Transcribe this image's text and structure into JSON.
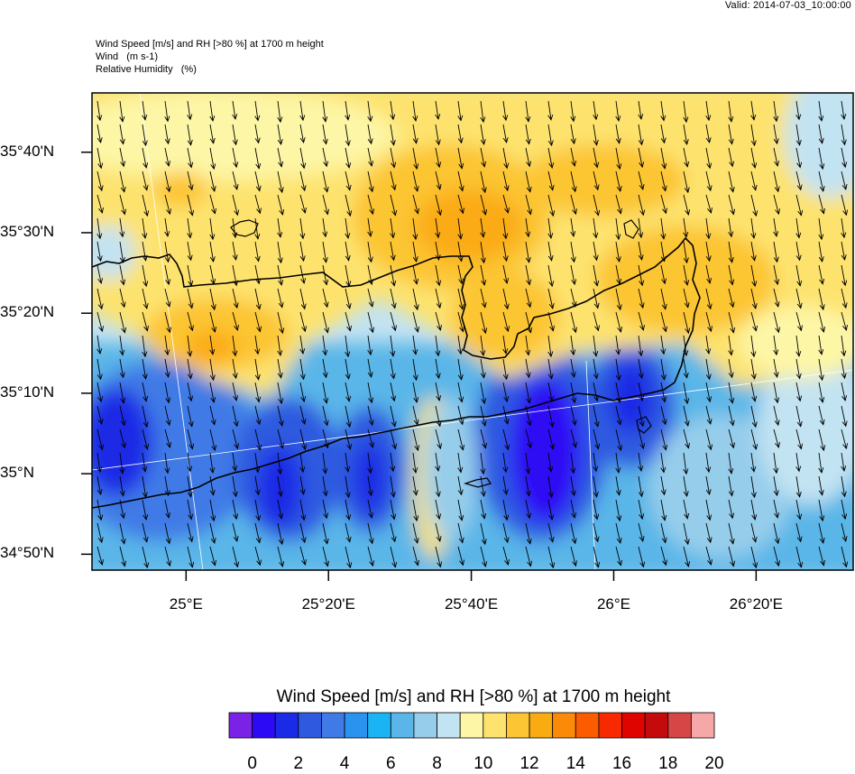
{
  "valid_time": "Valid: 2014-07-03_10:00:00",
  "header": {
    "line1": "Wind Speed [m/s] and RH [>80 %] at 1700 m height",
    "line2": "Wind   (m s-1)",
    "line3": "Relative Humidity   (%)"
  },
  "map": {
    "lat_range": [
      34.8,
      35.79
    ],
    "lon_range": [
      24.78,
      26.56
    ],
    "lat_labels": [
      {
        "text": "35°40'N",
        "value": 35.667
      },
      {
        "text": "35°30'N",
        "value": 35.5
      },
      {
        "text": "35°20'N",
        "value": 35.333
      },
      {
        "text": "35°10'N",
        "value": 35.167
      },
      {
        "text": "35°N",
        "value": 35.0
      },
      {
        "text": "34°50'N",
        "value": 34.833
      }
    ],
    "lon_labels": [
      {
        "text": "25°E",
        "value": 25.0
      },
      {
        "text": "25°20'E",
        "value": 25.333
      },
      {
        "text": "25°40'E",
        "value": 25.667
      },
      {
        "text": "26°E",
        "value": 26.0
      },
      {
        "text": "26°20'E",
        "value": 26.333
      }
    ],
    "wind_direction": "north-northwesterly",
    "field_fill": "wind speed shaded contours"
  },
  "colorbar": {
    "title": "Wind Speed [m/s] and RH [>80 %] at 1700 m height",
    "colors": [
      "#7a22e6",
      "#2d0af5",
      "#1a2ae6",
      "#2f5ae0",
      "#3f7ae6",
      "#2a93f0",
      "#1ab4f5",
      "#5ab6e8",
      "#96cdeb",
      "#c2e3f2",
      "#fdf6a6",
      "#fde36e",
      "#fcc533",
      "#fbab12",
      "#fb8a08",
      "#fc5c00",
      "#f82800",
      "#e00400",
      "#c40a0a",
      "#d74646",
      "#f6a7a7"
    ],
    "tick_labels": [
      "0",
      "2",
      "4",
      "6",
      "8",
      "10",
      "12",
      "14",
      "16",
      "18",
      "20"
    ]
  }
}
